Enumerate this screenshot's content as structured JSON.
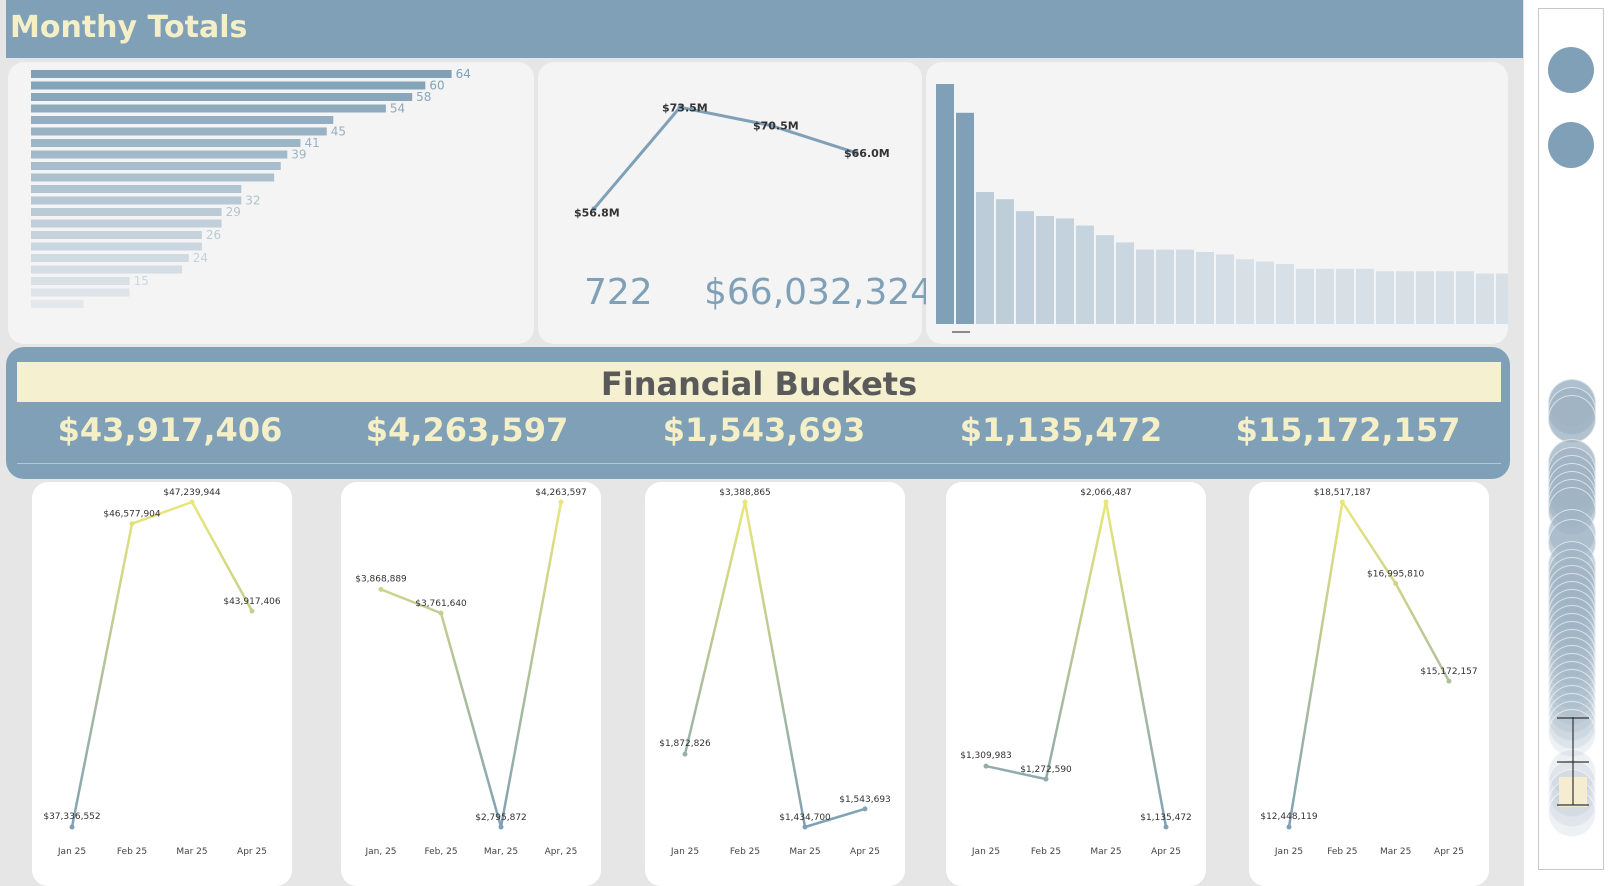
{
  "header": {
    "title": "Monthy Totals"
  },
  "kpis": {
    "count": "722",
    "total": "$66,032,324"
  },
  "financial": {
    "title": "Financial Buckets",
    "values": [
      "$43,917,406",
      "$4,263,597",
      "$1,543,693",
      "$1,135,472",
      "$15,172,157"
    ]
  },
  "colors": {
    "accent": "#7fa0b6",
    "cream": "#f5efc8",
    "yellow": "#e9e67a"
  },
  "side_icons": [
    "circle-filter-icon",
    "circle-filter-icon",
    "stacked-circles-icon",
    "range-slider-icon"
  ],
  "chart_data": [
    {
      "type": "bar",
      "orientation": "horizontal",
      "values": [
        64,
        60,
        58,
        54,
        46,
        45,
        41,
        39,
        38,
        37,
        32,
        32,
        29,
        29,
        26,
        26,
        24,
        23,
        15,
        15,
        8
      ],
      "labels": [
        "64",
        "60",
        "58",
        "54",
        "",
        "45",
        "41",
        "39",
        "",
        "",
        "",
        "32",
        "29",
        "",
        "26",
        "",
        "24",
        "",
        "15",
        "",
        ""
      ],
      "xlim": [
        0,
        70
      ]
    },
    {
      "type": "line",
      "values": [
        56.8,
        73.5,
        70.5,
        66.0
      ],
      "labels": [
        "$56.8M",
        "$73.5M",
        "$70.5M",
        "$66.0M"
      ],
      "ylim": [
        50,
        78
      ]
    },
    {
      "type": "bar",
      "orientation": "vertical",
      "values": [
        100,
        88,
        55,
        52,
        47,
        45,
        44,
        41,
        37,
        34,
        31,
        31,
        31,
        30,
        29,
        27,
        26,
        25,
        23,
        23,
        23,
        23,
        22,
        22,
        22,
        22,
        22,
        21,
        21,
        20
      ],
      "ylim": [
        0,
        100
      ]
    },
    {
      "type": "line",
      "categories": [
        "Jan 25",
        "Feb 25",
        "Mar 25",
        "Apr 25"
      ],
      "values": [
        37336552,
        46577904,
        47239944,
        43917406
      ],
      "labels": [
        "$37,336,552",
        "$46,577,904",
        "$47,239,944",
        "$43,917,406"
      ]
    },
    {
      "type": "line",
      "categories": [
        "Jan, 25",
        "Feb, 25",
        "Mar, 25",
        "Apr, 25"
      ],
      "values": [
        3868889,
        3761640,
        2795872,
        4263597
      ],
      "labels": [
        "$3,868,889",
        "$3,761,640",
        "$2,795,872",
        "$4,263,597"
      ]
    },
    {
      "type": "line",
      "categories": [
        "Jan 25",
        "Feb 25",
        "Mar 25",
        "Apr 25"
      ],
      "values": [
        1872826,
        3388865,
        1434700,
        1543693
      ],
      "labels": [
        "$1,872,826",
        "$3,388,865",
        "$1,434,700",
        "$1,543,693"
      ]
    },
    {
      "type": "line",
      "categories": [
        "Jan 25",
        "Feb 25",
        "Mar 25",
        "Apr 25"
      ],
      "values": [
        1309983,
        1272590,
        2066487,
        1135472
      ],
      "labels": [
        "$1,309,983",
        "$1,272,590",
        "$2,066,487",
        "$1,135,472"
      ]
    },
    {
      "type": "line",
      "categories": [
        "Jan 25",
        "Feb 25",
        "Mar 25",
        "Apr 25"
      ],
      "values": [
        12448119,
        18517187,
        16995810,
        15172157
      ],
      "labels": [
        "$12,448,119",
        "$18,517,187",
        "$16,995,810",
        "$15,172,157"
      ]
    }
  ]
}
